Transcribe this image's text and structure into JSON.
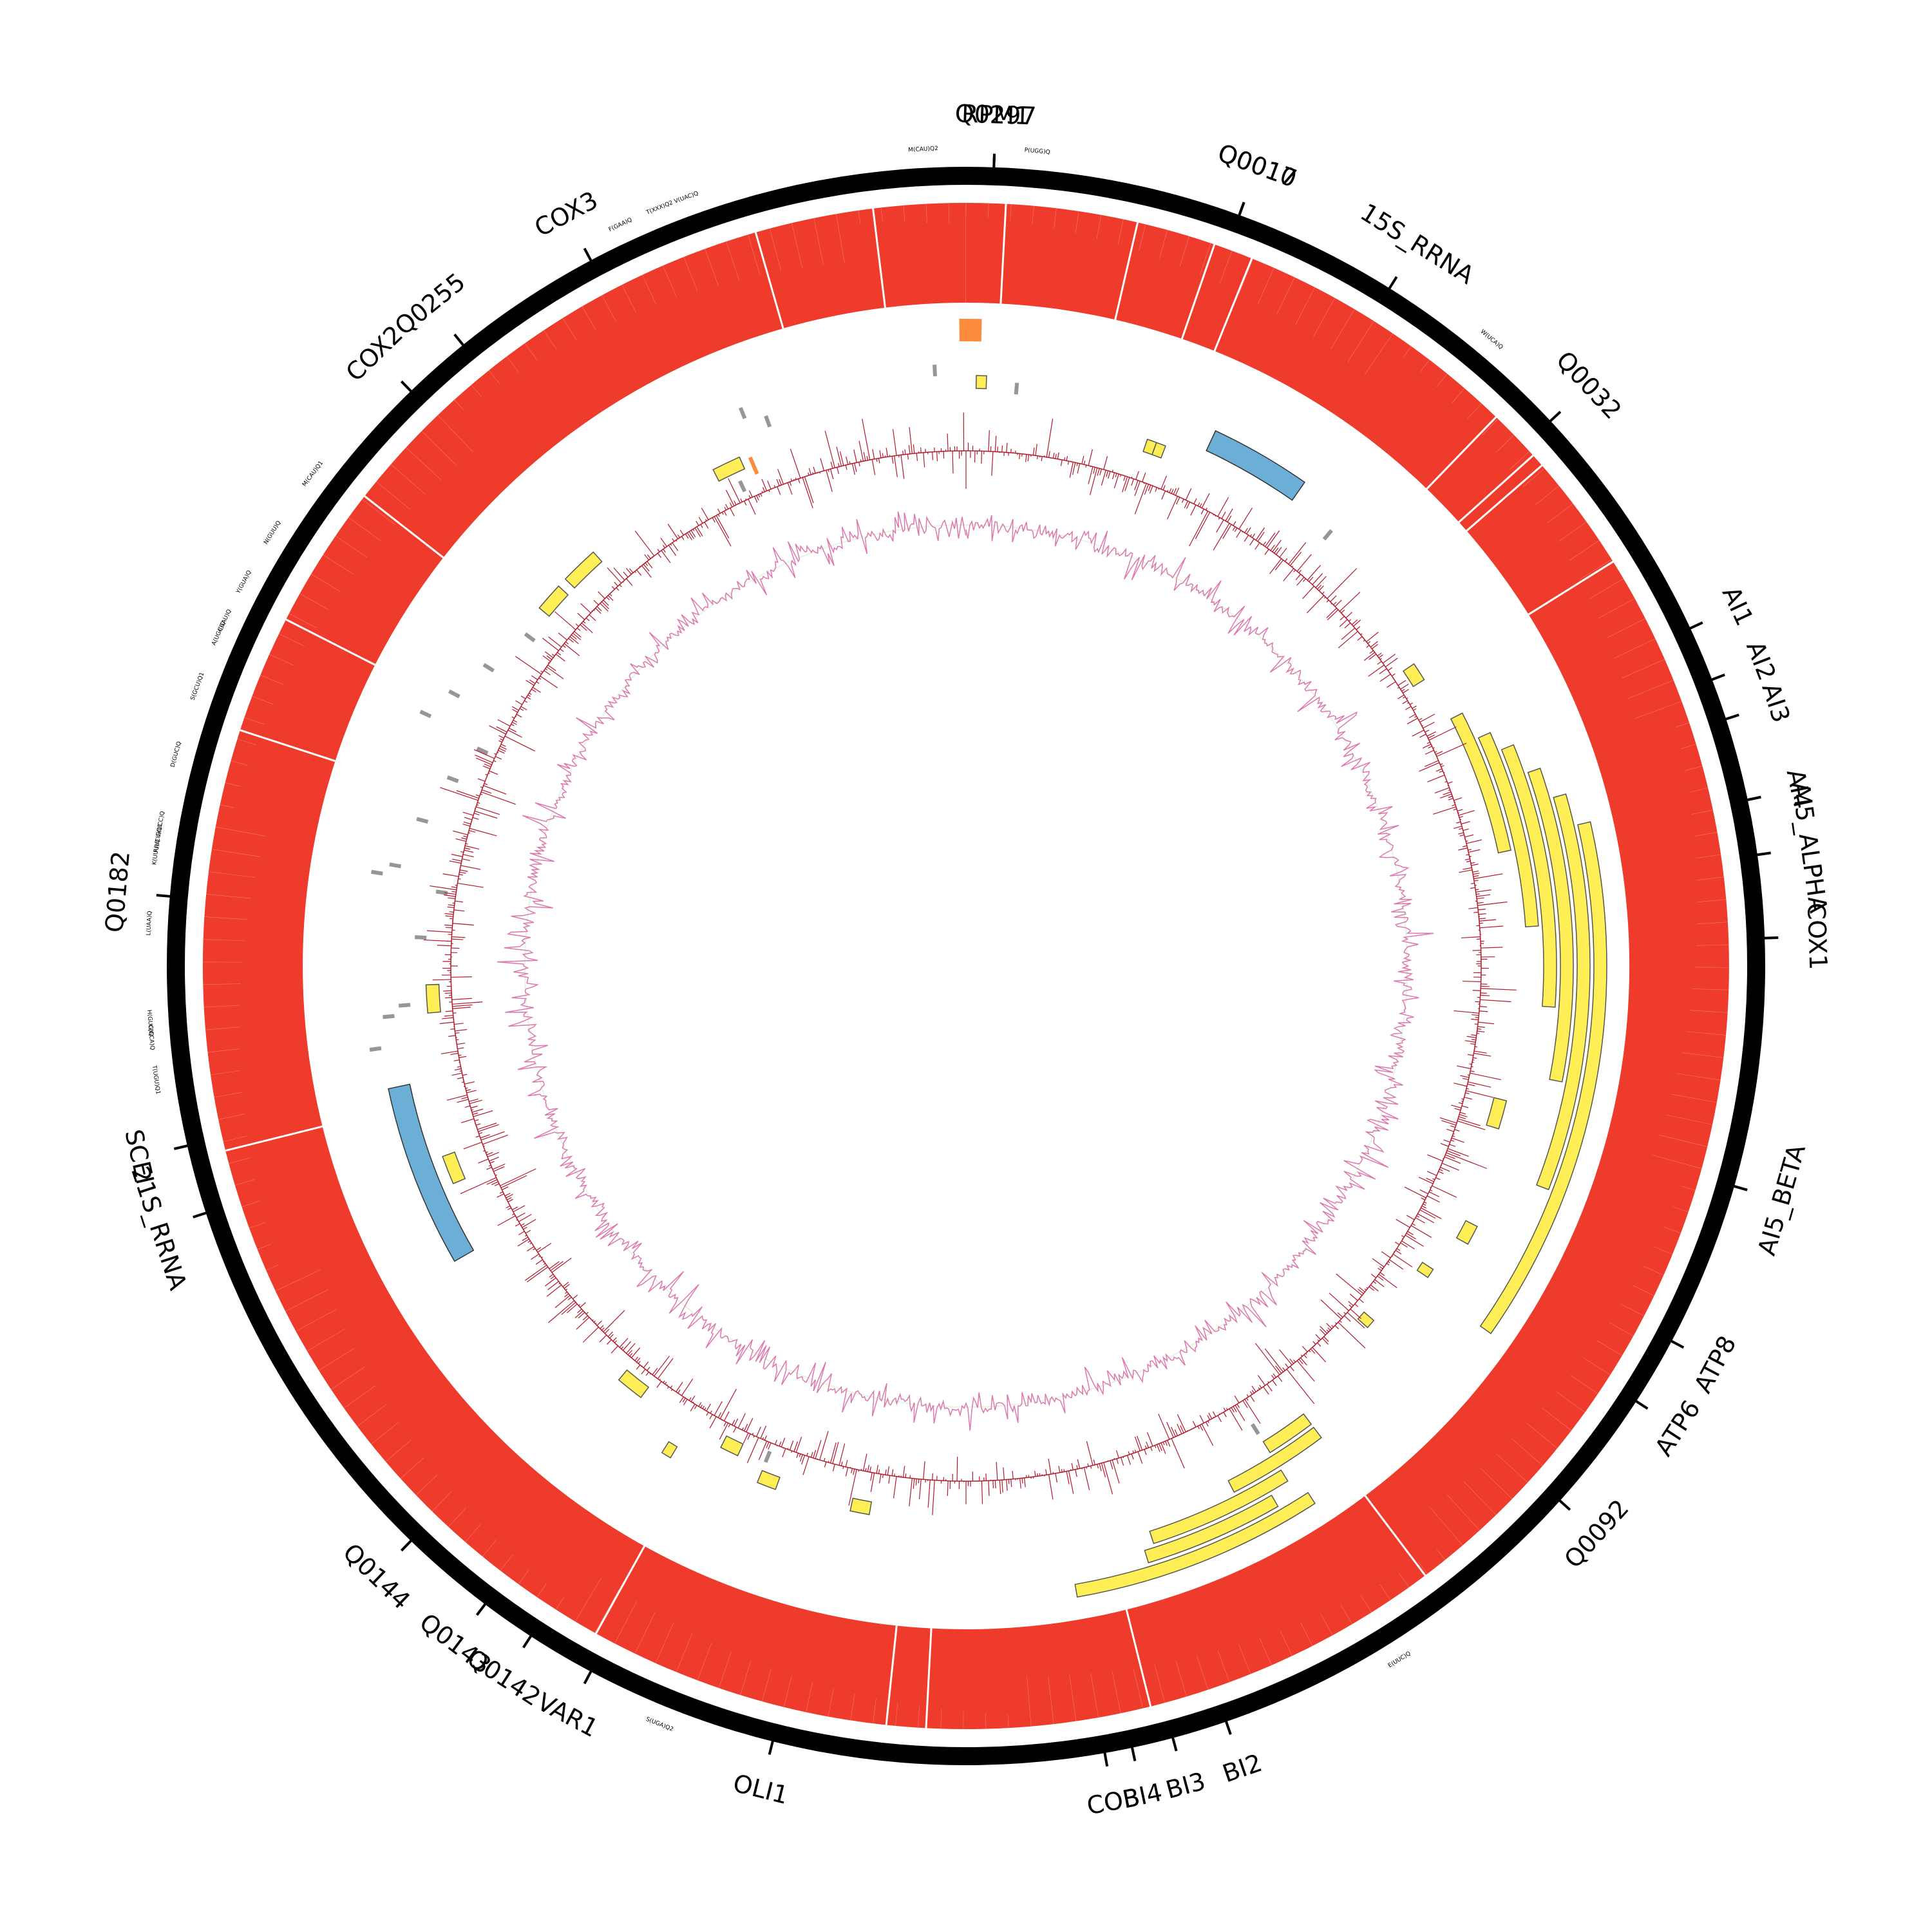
{
  "genes": [
    {
      "label": "Q0297",
      "angle": 2
    },
    {
      "label": "RPM1",
      "angle": 2
    },
    {
      "label": "Q0010",
      "angle": 20
    },
    {
      "label": "Q0017",
      "angle": 20
    },
    {
      "label": "15S_RRNA",
      "angle": 32
    },
    {
      "label": "Q0032",
      "angle": 47
    },
    {
      "label": "AI1",
      "angle": 65
    },
    {
      "label": "AI2",
      "angle": 69
    },
    {
      "label": "AI3",
      "angle": 72
    },
    {
      "label": "AI4",
      "angle": 78
    },
    {
      "label": "AI5_ALPHA",
      "angle": 82
    },
    {
      "label": "COX1",
      "angle": 88
    },
    {
      "label": "AI5_BETA",
      "angle": 106
    },
    {
      "label": "ATP8",
      "angle": 118
    },
    {
      "label": "ATP6",
      "angle": 123
    },
    {
      "label": "Q0092",
      "angle": 132
    },
    {
      "label": "BI2",
      "angle": 161
    },
    {
      "label": "BI3",
      "angle": 165
    },
    {
      "label": "BI4",
      "angle": 168
    },
    {
      "label": "COB",
      "angle": 170
    },
    {
      "label": "OLI1",
      "angle": 194
    },
    {
      "label": "VAR1",
      "angle": 208
    },
    {
      "label": "Q0142",
      "angle": 213
    },
    {
      "label": "Q0143",
      "angle": 217
    },
    {
      "label": "Q0144",
      "angle": 224
    },
    {
      "label": "21S_RRNA",
      "angle": 252
    },
    {
      "label": "SCEI",
      "angle": 257
    },
    {
      "label": "Q0182",
      "angle": 275
    },
    {
      "label": "COX2",
      "angle": 316
    },
    {
      "label": "Q0255",
      "angle": 321
    },
    {
      "label": "COX3",
      "angle": 332
    }
  ],
  "trnas": [
    {
      "label": "M(CAU)Q2",
      "angle": 357
    },
    {
      "label": "P(UGG)Q",
      "angle": 5
    },
    {
      "label": "W(UCA)Q",
      "angle": 40
    },
    {
      "label": "E(UUC)Q",
      "angle": 148
    },
    {
      "label": "S(UGA)Q2",
      "angle": 202
    },
    {
      "label": "T(UGU)Q1",
      "angle": 262
    },
    {
      "label": "C(GCA)Q",
      "angle": 265
    },
    {
      "label": "H(GUG)Q",
      "angle": 266
    },
    {
      "label": "L(UAA)Q",
      "angle": 273
    },
    {
      "label": "K(UUU)Q",
      "angle": 278
    },
    {
      "label": "R(UCU)Q1",
      "angle": 279
    },
    {
      "label": "G(UCC)Q",
      "angle": 280
    },
    {
      "label": "D(GUC)Q",
      "angle": 285
    },
    {
      "label": "S(GCU)Q1",
      "angle": 290
    },
    {
      "label": "A(UGC)Q",
      "angle": 294
    },
    {
      "label": "I(GAU)Q",
      "angle": 295
    },
    {
      "label": "Y(GUA)Q",
      "angle": 298
    },
    {
      "label": "N(GUU)Q",
      "angle": 302
    },
    {
      "label": "M(CAU)Q1",
      "angle": 307
    },
    {
      "label": "F(GAA)Q",
      "angle": 335
    },
    {
      "label": "T(XXX)Q2",
      "angle": 338
    },
    {
      "label": "V(UAC)Q",
      "angle": 340
    }
  ],
  "tracks": {
    "colors": {
      "outer_ring": "#000000",
      "coverage": "#ee3b2c",
      "orf": "#ffee55",
      "rrna": "#6baed6",
      "trna": "#969696",
      "rnase": "#fd8d3c",
      "skew_dark": "#b2182b",
      "skew_light": "#de77ae",
      "skew_fill": "#e5f5e0"
    },
    "coverage_gaps": [
      3,
      13,
      19,
      22,
      44,
      48,
      49,
      58,
      143,
      166,
      183,
      186,
      209,
      256,
      288,
      297,
      308,
      344,
      353
    ],
    "yellow_blocks": [
      {
        "start": 77,
        "end": 125,
        "level": 0
      },
      {
        "start": 74,
        "end": 111,
        "level": 1
      },
      {
        "start": 71,
        "end": 101,
        "level": 2
      },
      {
        "start": 68,
        "end": 94,
        "level": 3
      },
      {
        "start": 66,
        "end": 86,
        "level": 4
      },
      {
        "start": 63,
        "end": 78,
        "level": 5
      },
      {
        "start": 147,
        "end": 170,
        "level": 0
      },
      {
        "start": 150,
        "end": 163,
        "level": 1
      },
      {
        "start": 148,
        "end": 162,
        "level": 2
      },
      {
        "start": 143,
        "end": 153,
        "level": 3
      },
      {
        "start": 143,
        "end": 148,
        "level": 4
      },
      {
        "start": 104,
        "end": 107,
        "level": 5
      },
      {
        "start": 117,
        "end": 119,
        "level": 4
      },
      {
        "start": 123,
        "end": 124,
        "level": 5
      },
      {
        "start": 131,
        "end": 132,
        "level": 6
      },
      {
        "start": 19,
        "end": 20,
        "level": 5
      },
      {
        "start": 20,
        "end": 21,
        "level": 5
      },
      {
        "start": 1,
        "end": 2,
        "level": 3
      },
      {
        "start": 333,
        "end": 336,
        "level": 5
      },
      {
        "start": 314,
        "end": 318,
        "level": 5
      },
      {
        "start": 310,
        "end": 313,
        "level": 5
      },
      {
        "start": 265,
        "end": 268,
        "level": 6
      },
      {
        "start": 247,
        "end": 250,
        "level": 5
      },
      {
        "start": 217,
        "end": 220,
        "level": 6
      },
      {
        "start": 205,
        "end": 207,
        "level": 6
      },
      {
        "start": 211,
        "end": 212,
        "level": 4
      },
      {
        "start": 200,
        "end": 202,
        "level": 5
      },
      {
        "start": 190,
        "end": 192,
        "level": 5
      },
      {
        "start": 56,
        "end": 58,
        "level": 6
      }
    ],
    "blue_blocks": [
      {
        "start": 25,
        "end": 35,
        "level": 3
      },
      {
        "start": 240,
        "end": 258,
        "level": 3
      }
    ],
    "grey_marks": [
      357,
      5,
      40,
      148,
      202,
      262,
      265,
      266,
      273,
      278,
      279,
      280,
      285,
      290,
      294,
      295,
      298,
      302,
      307,
      335,
      338,
      340
    ],
    "orange_marks": [
      {
        "angle": 0,
        "type": "block"
      },
      {
        "angle": 337,
        "type": "tick"
      }
    ]
  }
}
